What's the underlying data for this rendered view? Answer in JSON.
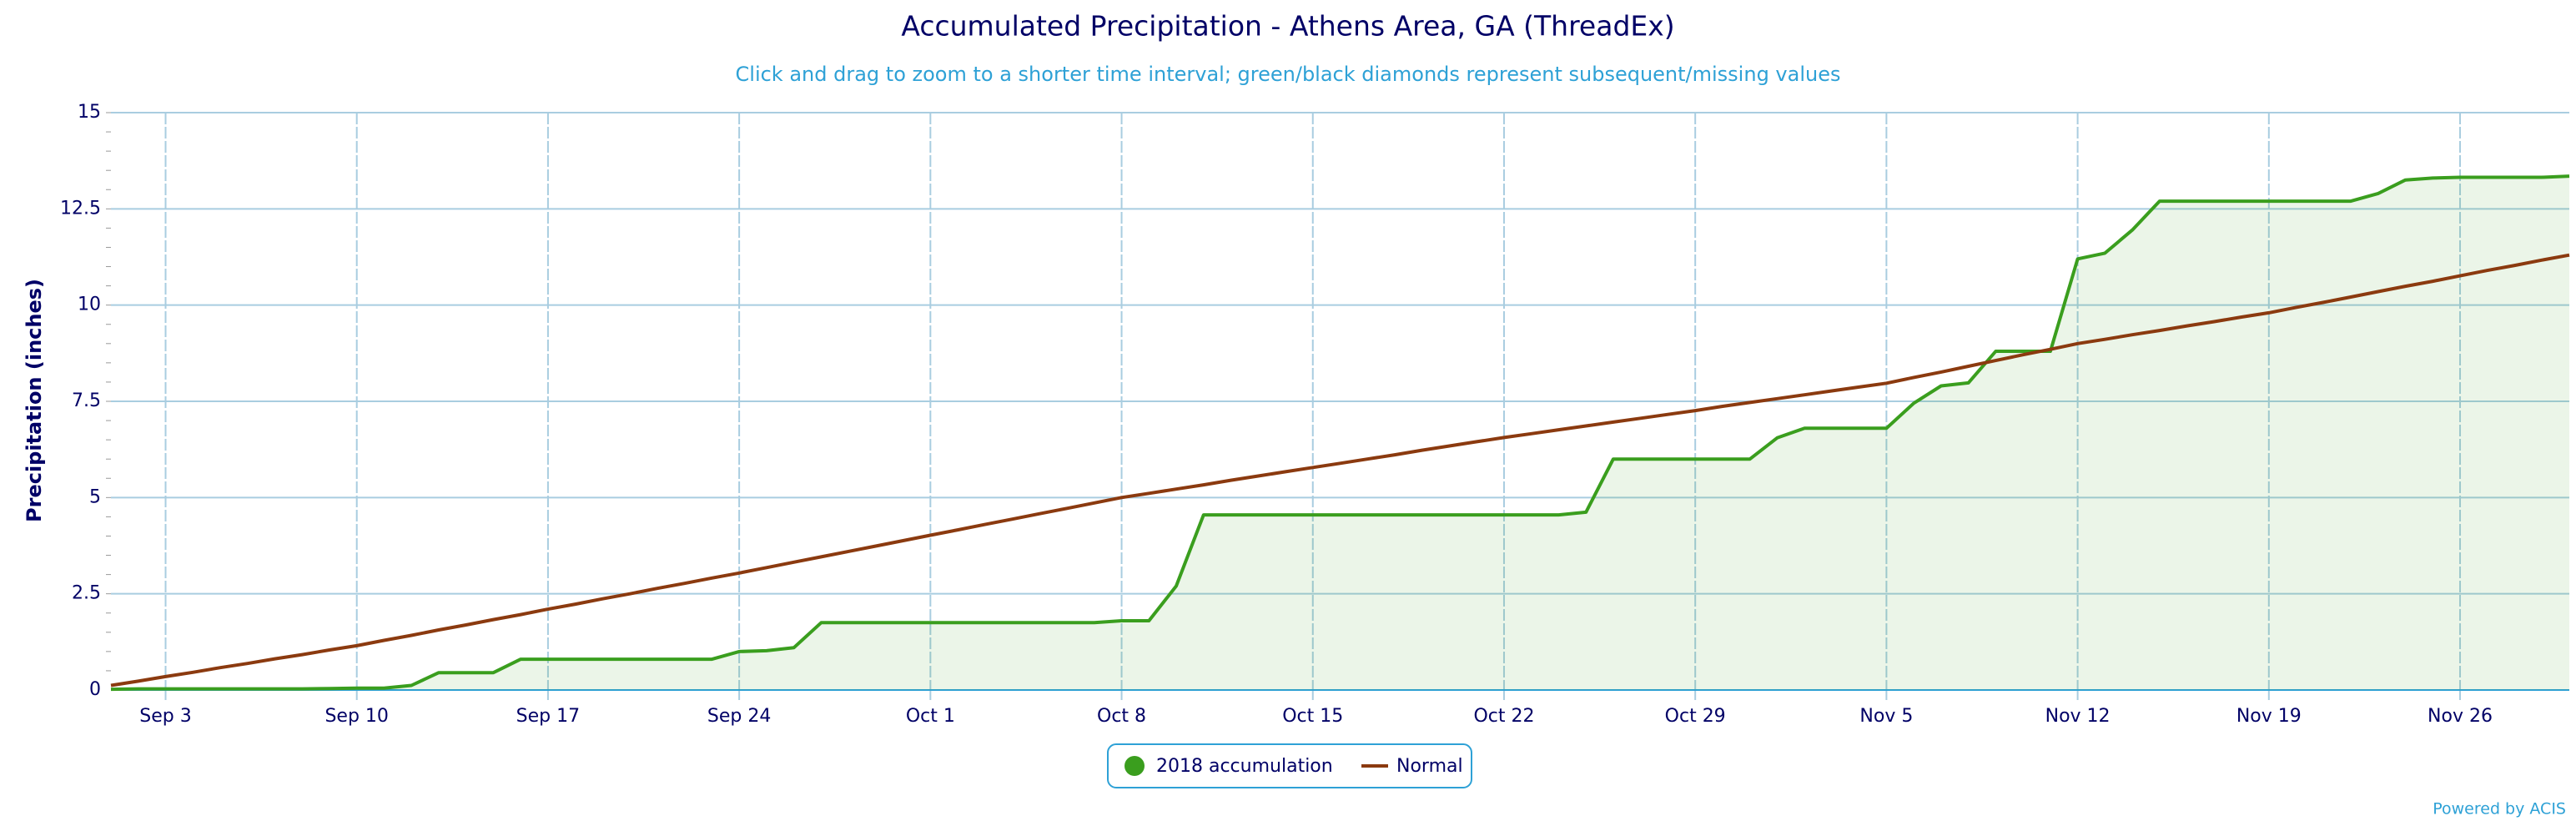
{
  "chart_data": {
    "type": "line",
    "title": "Accumulated Precipitation - Athens Area, GA (ThreadEx)",
    "subtitle": "Click and drag to zoom to a shorter time interval; green/black diamonds represent subsequent/missing values",
    "y_label": "Precipitation (inches)",
    "credit": "Powered by ACIS",
    "categories": [
      "Sep 1",
      "Sep 2",
      "Sep 3",
      "Sep 4",
      "Sep 5",
      "Sep 6",
      "Sep 7",
      "Sep 8",
      "Sep 9",
      "Sep 10",
      "Sep 11",
      "Sep 12",
      "Sep 13",
      "Sep 14",
      "Sep 15",
      "Sep 16",
      "Sep 17",
      "Sep 18",
      "Sep 19",
      "Sep 20",
      "Sep 21",
      "Sep 22",
      "Sep 23",
      "Sep 24",
      "Sep 25",
      "Sep 26",
      "Sep 27",
      "Sep 28",
      "Sep 29",
      "Sep 30",
      "Oct 1",
      "Oct 2",
      "Oct 3",
      "Oct 4",
      "Oct 5",
      "Oct 6",
      "Oct 7",
      "Oct 8",
      "Oct 9",
      "Oct 10",
      "Oct 11",
      "Oct 12",
      "Oct 13",
      "Oct 14",
      "Oct 15",
      "Oct 16",
      "Oct 17",
      "Oct 18",
      "Oct 19",
      "Oct 20",
      "Oct 21",
      "Oct 22",
      "Oct 23",
      "Oct 24",
      "Oct 25",
      "Oct 26",
      "Oct 27",
      "Oct 28",
      "Oct 29",
      "Oct 30",
      "Oct 31",
      "Nov 1",
      "Nov 2",
      "Nov 3",
      "Nov 4",
      "Nov 5",
      "Nov 6",
      "Nov 7",
      "Nov 8",
      "Nov 9",
      "Nov 10",
      "Nov 11",
      "Nov 12",
      "Nov 13",
      "Nov 14",
      "Nov 15",
      "Nov 16",
      "Nov 17",
      "Nov 18",
      "Nov 19",
      "Nov 20",
      "Nov 21",
      "Nov 22",
      "Nov 23",
      "Nov 24",
      "Nov 25",
      "Nov 26",
      "Nov 27",
      "Nov 28",
      "Nov 29",
      "Nov 30"
    ],
    "xticks": [
      "Sep 3",
      "Sep 10",
      "Sep 17",
      "Sep 24",
      "Oct 1",
      "Oct 8",
      "Oct 15",
      "Oct 22",
      "Oct 29",
      "Nov 5",
      "Nov 12",
      "Nov 19",
      "Nov 26"
    ],
    "series": [
      {
        "name": "2018 accumulation",
        "color": "#3a9e1e",
        "fill": true,
        "values": [
          0.02,
          0.03,
          0.03,
          0.03,
          0.03,
          0.03,
          0.03,
          0.03,
          0.04,
          0.05,
          0.05,
          0.12,
          0.45,
          0.45,
          0.45,
          0.8,
          0.8,
          0.8,
          0.8,
          0.8,
          0.8,
          0.8,
          0.8,
          1.0,
          1.02,
          1.1,
          1.75,
          1.75,
          1.75,
          1.75,
          1.75,
          1.75,
          1.75,
          1.75,
          1.75,
          1.75,
          1.75,
          1.8,
          1.8,
          2.7,
          4.55,
          4.55,
          4.55,
          4.55,
          4.55,
          4.55,
          4.55,
          4.55,
          4.55,
          4.55,
          4.55,
          4.55,
          4.55,
          4.55,
          4.62,
          6.0,
          6.0,
          6.0,
          6.0,
          6.0,
          6.0,
          6.55,
          6.8,
          6.8,
          6.8,
          6.8,
          7.45,
          7.9,
          7.98,
          8.8,
          8.8,
          8.8,
          11.2,
          11.35,
          11.95,
          12.7,
          12.7,
          12.7,
          12.7,
          12.7,
          12.7,
          12.7,
          12.7,
          12.9,
          13.25,
          13.3,
          13.32,
          13.32,
          13.32,
          13.32,
          13.35
        ]
      },
      {
        "name": "Normal",
        "color": "#8b3a0f",
        "fill": false,
        "values": [
          0.12,
          0.23,
          0.35,
          0.46,
          0.58,
          0.69,
          0.81,
          0.92,
          1.04,
          1.15,
          1.29,
          1.42,
          1.56,
          1.69,
          1.83,
          1.96,
          2.1,
          2.23,
          2.37,
          2.5,
          2.64,
          2.77,
          2.91,
          3.04,
          3.18,
          3.32,
          3.46,
          3.6,
          3.74,
          3.88,
          4.02,
          4.16,
          4.3,
          4.44,
          4.58,
          4.72,
          4.86,
          5.0,
          5.11,
          5.22,
          5.33,
          5.45,
          5.56,
          5.67,
          5.78,
          5.89,
          6.0,
          6.11,
          6.23,
          6.34,
          6.45,
          6.56,
          6.66,
          6.76,
          6.86,
          6.96,
          7.06,
          7.16,
          7.26,
          7.37,
          7.47,
          7.57,
          7.67,
          7.77,
          7.87,
          7.97,
          8.12,
          8.26,
          8.41,
          8.56,
          8.71,
          8.85,
          9.0,
          9.11,
          9.23,
          9.34,
          9.46,
          9.57,
          9.69,
          9.8,
          9.94,
          10.07,
          10.21,
          10.35,
          10.49,
          10.62,
          10.76,
          10.9,
          11.03,
          11.17,
          11.3
        ]
      }
    ],
    "ylim": [
      0,
      15
    ],
    "yticks": [
      0,
      2.5,
      5,
      7.5,
      10,
      12.5,
      15
    ],
    "grid": true,
    "legend": "bottom"
  }
}
